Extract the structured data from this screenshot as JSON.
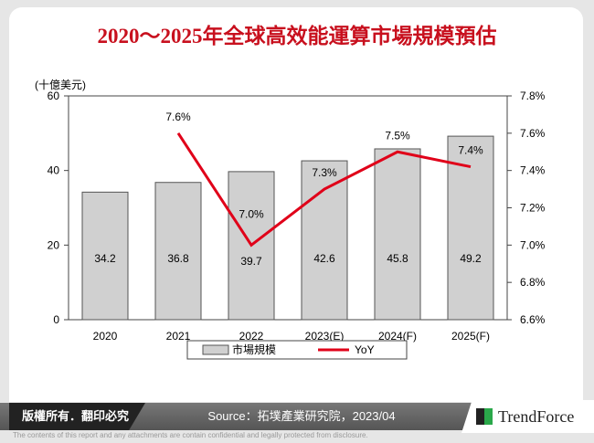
{
  "title": "2020～2025年全球高效能運算市場規模預估",
  "footer": {
    "copyright": "版權所有．翻印必究",
    "source": "Source：拓墣產業研究院，2023/04",
    "logo": "TrendForce",
    "disclaimer": "The contents of this report and any attachments are contain confidential and legally protected from disclosure."
  },
  "chart_data": {
    "type": "bar+line",
    "categories": [
      "2020",
      "2021",
      "2022",
      "2023(E)",
      "2024(F)",
      "2025(F)"
    ],
    "left_axis": {
      "unit_label": "(十億美元)",
      "ylim": [
        0,
        60
      ],
      "ticks": [
        "0",
        "20",
        "40",
        "60"
      ]
    },
    "right_axis": {
      "ylim": [
        6.6,
        7.8
      ],
      "ticks": [
        "6.6%",
        "6.8%",
        "7.0%",
        "7.2%",
        "7.4%",
        "7.6%",
        "7.8%"
      ]
    },
    "series": [
      {
        "name": "市場規模",
        "type": "bar",
        "values": [
          34.2,
          36.8,
          39.7,
          42.6,
          45.8,
          49.2
        ],
        "labels": [
          "34.2",
          "36.8",
          "39.7",
          "42.6",
          "45.8",
          "49.2"
        ],
        "color": "#d0d0d0"
      },
      {
        "name": "YoY",
        "type": "line",
        "values": [
          null,
          7.6,
          7.0,
          7.3,
          7.5,
          7.42
        ],
        "labels": [
          "",
          "7.6%",
          "7.0%",
          "7.3%",
          "7.5%",
          "7.4%"
        ],
        "color": "#e00019"
      }
    ],
    "legend": "bottom",
    "grid": false
  }
}
